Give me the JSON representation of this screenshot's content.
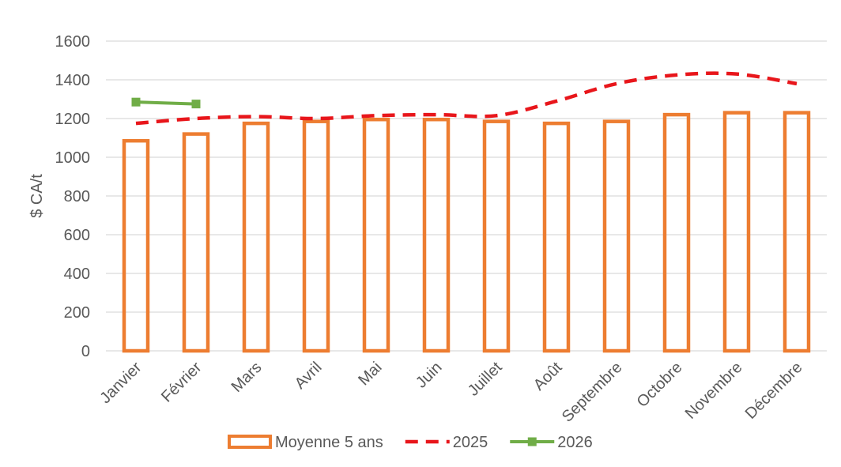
{
  "chart_data": {
    "type": "bar",
    "title": "",
    "xlabel": "",
    "ylabel": "$ CA/t",
    "ylim": [
      0,
      1600
    ],
    "ytick_step": 200,
    "grid": true,
    "legend_position": "bottom",
    "categories": [
      "Janvier",
      "Février",
      "Mars",
      "Avril",
      "Mai",
      "Juin",
      "Juillet",
      "Août",
      "Septembre",
      "Octobre",
      "Novembre",
      "Décembre"
    ],
    "series": [
      {
        "name": "Moyenne 5 ans",
        "type": "bar",
        "style": "hollow",
        "color": "#ed7d31",
        "values": [
          1085,
          1120,
          1175,
          1185,
          1195,
          1195,
          1185,
          1175,
          1185,
          1220,
          1230,
          1230
        ]
      },
      {
        "name": "2025",
        "type": "line",
        "style": "dashed-smooth",
        "color": "#e8161b",
        "values": [
          1175,
          1200,
          1210,
          1200,
          1215,
          1220,
          1215,
          1290,
          1380,
          1425,
          1430,
          1380
        ]
      },
      {
        "name": "2026",
        "type": "line",
        "style": "solid-square-markers",
        "color": "#70ad47",
        "values": [
          1285,
          1275,
          null,
          null,
          null,
          null,
          null,
          null,
          null,
          null,
          null,
          null
        ]
      }
    ]
  }
}
